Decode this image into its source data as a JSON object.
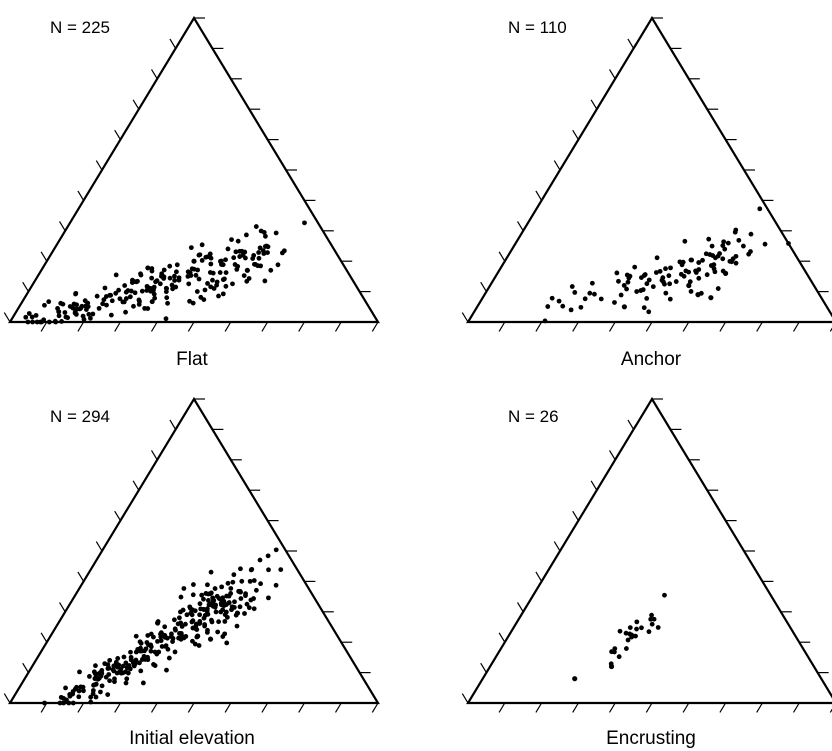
{
  "colors": {
    "ink": "#000000",
    "background": "#ffffff"
  },
  "chart_data": [
    {
      "type": "scatter",
      "subtype": "ternary",
      "caption": "Flat",
      "n_label": "N = 225",
      "axis_ticks": 10,
      "point_count": 225,
      "trend": {
        "start": [
          0.05,
          0.95,
          0.0
        ],
        "end": [
          0.58,
          0.2,
          0.22
        ],
        "spread": 0.025,
        "fan": 0.045,
        "tail_skew": 0.8,
        "outliers": [
          [
            0.48,
            0.33,
            0.19
          ],
          [
            0.56,
            0.27,
            0.17
          ],
          [
            0.4,
            0.4,
            0.2
          ]
        ]
      }
    },
    {
      "type": "scatter",
      "subtype": "ternary",
      "caption": "Anchor",
      "n_label": "N = 110",
      "axis_ticks": 10,
      "point_count": 110,
      "trend": {
        "start": [
          0.17,
          0.8,
          0.03
        ],
        "end": [
          0.63,
          0.14,
          0.23
        ],
        "spread": 0.02,
        "fan": 0.06,
        "tail_skew": 0.55,
        "outliers": [
          [
            0.62,
            0.3,
            0.08
          ],
          [
            0.58,
            0.33,
            0.09
          ],
          [
            0.54,
            0.34,
            0.12
          ],
          [
            0.4,
            0.55,
            0.05
          ],
          [
            0.62,
            0.22,
            0.16
          ]
        ]
      }
    },
    {
      "type": "scatter",
      "subtype": "ternary",
      "caption": "Initial elevation",
      "n_label": "N = 294",
      "axis_ticks": 10,
      "point_count": 294,
      "trend": {
        "start": [
          0.13,
          0.87,
          0.0
        ],
        "end": [
          0.46,
          0.16,
          0.38
        ],
        "spread": 0.03,
        "fan": 0.05,
        "tail_skew": 0.75,
        "outliers": [
          [
            0.44,
            0.35,
            0.21
          ],
          [
            0.4,
            0.38,
            0.22
          ]
        ]
      }
    },
    {
      "type": "scatter",
      "subtype": "ternary",
      "caption": "Encrusting",
      "n_label": "N = 26",
      "axis_ticks": 10,
      "point_count": 26,
      "trend": {
        "start": [
          0.28,
          0.72,
          0.0
        ],
        "end": [
          0.35,
          0.36,
          0.29
        ],
        "spread": 0.012,
        "fan": 0.04,
        "tail_skew": 0.3,
        "outliers": [
          [
            0.33,
            0.55,
            0.12
          ],
          [
            0.25,
            0.67,
            0.08
          ]
        ]
      }
    }
  ]
}
